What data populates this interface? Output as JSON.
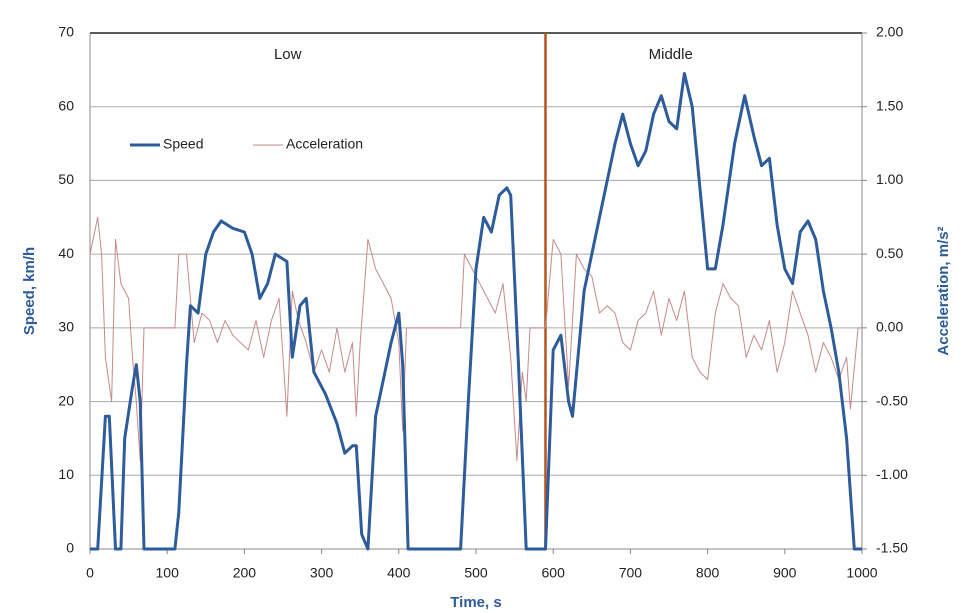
{
  "chart_data": {
    "type": "line",
    "xlabel": "Time, s",
    "ylabel": "Speed, km/h",
    "y2label": "Acceleration, m/s²",
    "xlim": [
      0,
      1000
    ],
    "xticks": [
      0,
      100,
      200,
      300,
      400,
      500,
      600,
      700,
      800,
      900,
      1000
    ],
    "ylim": [
      0,
      70
    ],
    "yticks": [
      0,
      10,
      20,
      30,
      40,
      50,
      60,
      70
    ],
    "y2lim": [
      -1.5,
      2.0
    ],
    "y2ticks": [
      {
        "value": -1.5,
        "label": "-1.50"
      },
      {
        "value": -1.0,
        "label": "-1.00"
      },
      {
        "value": -0.5,
        "label": "-0.50"
      },
      {
        "value": 0,
        "label": "0.00"
      },
      {
        "value": 0.5,
        "label": "0.50"
      },
      {
        "value": 1.0,
        "label": "1.00"
      },
      {
        "value": 1.5,
        "label": "1.50"
      },
      {
        "value": 2.0,
        "label": "2.00"
      }
    ],
    "grid": true,
    "annotations": [
      "Low",
      "Middle"
    ],
    "divider": {
      "x": 590,
      "color": "#b5541c"
    },
    "series": [
      {
        "name": "Speed",
        "color": "#2e5b9a",
        "x": [
          0,
          10,
          20,
          25,
          33,
          40,
          45,
          55,
          60,
          65,
          70,
          110,
          115,
          125,
          130,
          140,
          150,
          160,
          170,
          185,
          200,
          210,
          220,
          230,
          240,
          255,
          262,
          272,
          280,
          290,
          305,
          320,
          330,
          340,
          345,
          352,
          360,
          370,
          380,
          390,
          400,
          405,
          412,
          480,
          490,
          500,
          510,
          520,
          530,
          540,
          545,
          555,
          565,
          590,
          600,
          610,
          620,
          625,
          640,
          660,
          680,
          690,
          700,
          710,
          720,
          730,
          740,
          750,
          760,
          770,
          780,
          790,
          800,
          810,
          820,
          835,
          848,
          860,
          870,
          880,
          890,
          900,
          910,
          920,
          930,
          940,
          950,
          960,
          970,
          980,
          990,
          1000
        ],
        "values": [
          0,
          0,
          18,
          18,
          0,
          0,
          15,
          22,
          25,
          20,
          0,
          0,
          5,
          25,
          33,
          32,
          40,
          43,
          44.5,
          43.5,
          43,
          40,
          34,
          36,
          40,
          39,
          26,
          33,
          34,
          24,
          21,
          17,
          13,
          14,
          14,
          2,
          0,
          18,
          23,
          28,
          32,
          25,
          0,
          0,
          20,
          38,
          45,
          43,
          48,
          49,
          48,
          25,
          0,
          0,
          27,
          29,
          20,
          18,
          35,
          45,
          55,
          59,
          55,
          52,
          54,
          59,
          61.5,
          58,
          57,
          64.5,
          60,
          49,
          38,
          38,
          44,
          55,
          61.5,
          56,
          52,
          53,
          44,
          38,
          36,
          43,
          44.5,
          42,
          35,
          30,
          24,
          15,
          0,
          0
        ]
      },
      {
        "name": "Acceleration",
        "color": "#c48a8a",
        "axis": "y2",
        "x": [
          0,
          10,
          15,
          20,
          28,
          33,
          40,
          50,
          55,
          60,
          65,
          70,
          110,
          115,
          125,
          130,
          135,
          145,
          155,
          165,
          175,
          185,
          195,
          205,
          215,
          225,
          235,
          245,
          255,
          262,
          270,
          280,
          290,
          300,
          310,
          320,
          330,
          340,
          345,
          350,
          360,
          370,
          380,
          390,
          400,
          405,
          410,
          480,
          485,
          495,
          505,
          515,
          525,
          535,
          545,
          553,
          560,
          565,
          570,
          590,
          600,
          610,
          620,
          630,
          640,
          650,
          660,
          670,
          680,
          690,
          700,
          710,
          720,
          730,
          740,
          750,
          760,
          770,
          780,
          790,
          800,
          810,
          820,
          830,
          840,
          850,
          860,
          870,
          880,
          890,
          900,
          910,
          920,
          930,
          940,
          950,
          960,
          970,
          980,
          985,
          995,
          1000
        ],
        "values": [
          0.5,
          0.75,
          0.5,
          -0.2,
          -0.5,
          0.6,
          0.3,
          0.2,
          -0.2,
          -0.5,
          -0.9,
          0,
          0,
          0.5,
          0.5,
          0.2,
          -0.1,
          0.1,
          0.05,
          -0.1,
          0.05,
          -0.05,
          -0.1,
          -0.15,
          0.05,
          -0.2,
          0.05,
          0.2,
          -0.6,
          0.25,
          0.05,
          -0.1,
          -0.3,
          -0.15,
          -0.3,
          0,
          -0.3,
          -0.1,
          -0.6,
          -0.1,
          0.6,
          0.4,
          0.3,
          0.2,
          -0.1,
          -0.7,
          0,
          0,
          0.5,
          0.4,
          0.3,
          0.2,
          0.1,
          0.3,
          -0.2,
          -0.9,
          -0.3,
          -0.5,
          0,
          0,
          0.6,
          0.5,
          -0.4,
          0.5,
          0.4,
          0.35,
          0.1,
          0.15,
          0.1,
          -0.1,
          -0.15,
          0.05,
          0.1,
          0.25,
          -0.05,
          0.2,
          0.05,
          0.25,
          -0.2,
          -0.3,
          -0.35,
          0.1,
          0.3,
          0.2,
          0.15,
          -0.2,
          -0.05,
          -0.15,
          0.05,
          -0.3,
          -0.1,
          0.25,
          0.1,
          -0.05,
          -0.3,
          -0.1,
          -0.2,
          -0.35,
          -0.2,
          -0.55,
          0,
          0
        ]
      }
    ]
  }
}
